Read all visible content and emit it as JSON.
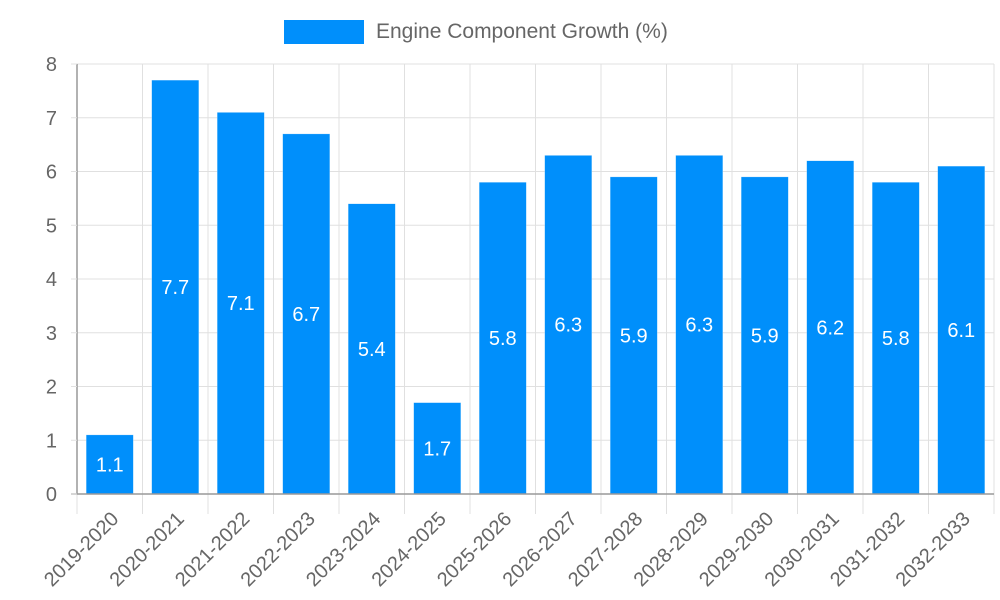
{
  "chart_data": {
    "type": "bar",
    "title": "",
    "xlabel": "",
    "ylabel": "",
    "ylim": [
      0,
      8
    ],
    "yticks": [
      0,
      1,
      2,
      3,
      4,
      5,
      6,
      7,
      8
    ],
    "grid": true,
    "legend_position": "top",
    "categories": [
      "2019-2020",
      "2020-2021",
      "2021-2022",
      "2022-2023",
      "2023-2024",
      "2024-2025",
      "2025-2026",
      "2026-2027",
      "2027-2028",
      "2028-2029",
      "2029-2030",
      "2030-2031",
      "2031-2032",
      "2032-2033"
    ],
    "series": [
      {
        "name": "Engine Component Growth (%)",
        "color": "#008ffb",
        "values": [
          1.1,
          7.7,
          7.1,
          6.7,
          5.4,
          1.7,
          5.8,
          6.3,
          5.9,
          6.3,
          5.9,
          6.2,
          5.8,
          6.1
        ],
        "data_labels": [
          "1.1",
          "7.7",
          "7.1",
          "6.7",
          "5.4",
          "1.7",
          "5.8",
          "6.3",
          "5.9",
          "6.3",
          "5.9",
          "6.2",
          "5.8",
          "6.1"
        ]
      }
    ]
  },
  "legend": {
    "label": "Engine Component Growth (%)",
    "color": "#008ffb"
  },
  "colors": {
    "bar": "#008ffb",
    "grid": "#e0e0e0",
    "axis": "#999999",
    "tick_text": "#666666",
    "data_label": "#ffffff"
  }
}
